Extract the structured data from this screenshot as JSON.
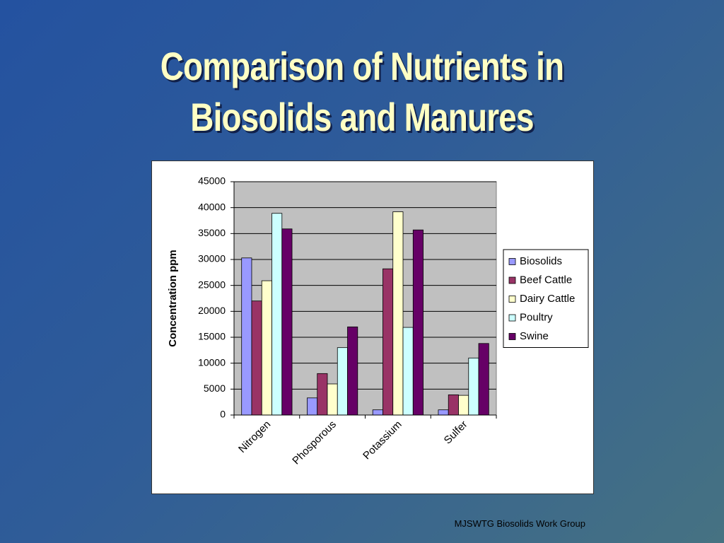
{
  "slide": {
    "title_line1": "Comparison of Nutrients in",
    "title_line2": "Biosolids and Manures",
    "footer": "MJSWTG Biosolids Work Group"
  },
  "chart_data": {
    "type": "bar",
    "title": "",
    "xlabel": "",
    "ylabel": "Concentration ppm",
    "categories": [
      "Nitrogen",
      "Phosporous",
      "Potassium",
      "Sulfer"
    ],
    "ylim": [
      0,
      45000
    ],
    "yticks": [
      0,
      5000,
      10000,
      15000,
      20000,
      25000,
      30000,
      35000,
      40000,
      45000
    ],
    "grid": true,
    "legend_position": "right",
    "series": [
      {
        "name": "Biosolids",
        "color": "#9999ff",
        "values": [
          30300,
          3300,
          1000,
          1000
        ]
      },
      {
        "name": "Beef Cattle",
        "color": "#993366",
        "values": [
          22000,
          8000,
          28200,
          3900
        ]
      },
      {
        "name": "Dairy Cattle",
        "color": "#ffffcc",
        "values": [
          25900,
          6000,
          39200,
          3800
        ]
      },
      {
        "name": "Poultry",
        "color": "#ccffff",
        "values": [
          38900,
          13000,
          16900,
          11000
        ]
      },
      {
        "name": "Swine",
        "color": "#660066",
        "values": [
          35900,
          17000,
          35700,
          13800
        ]
      }
    ]
  }
}
